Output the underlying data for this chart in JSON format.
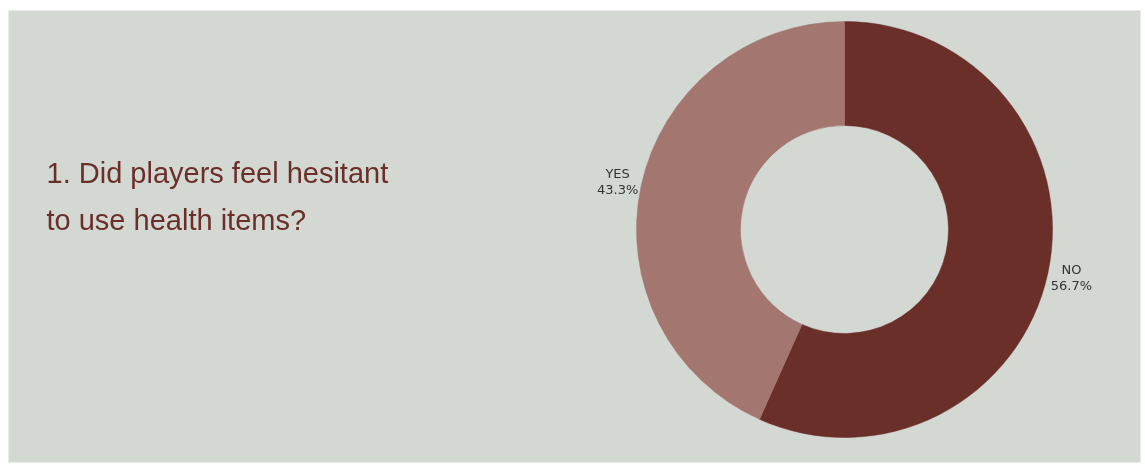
{
  "chart_data": {
    "type": "donut",
    "title": "1. Did players feel hesitant to use health items?",
    "categories": [
      "NO",
      "YES"
    ],
    "values": [
      56.7,
      43.3
    ],
    "colors": [
      "#6b2f2a",
      "#a37770"
    ],
    "value_labels": [
      "56.7%",
      "43.3%"
    ]
  }
}
